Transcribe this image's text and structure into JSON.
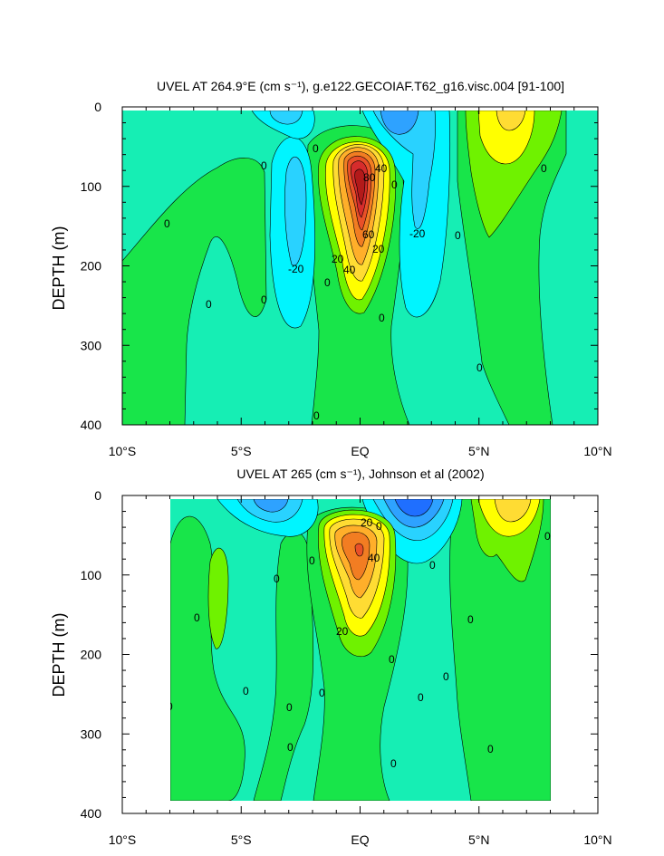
{
  "chart_data": [
    {
      "type": "heatmap",
      "subtype": "filled-contour",
      "title": "UVEL AT 264.9°E (cm s⁻¹), g.e122.GECOIAF.T62_g16.visc.004 [91-100]",
      "ylabel": "DEPTH (m)",
      "xlabel": "",
      "x_ticks": [
        "10°S",
        "5°S",
        "EQ",
        "5°N",
        "10°N"
      ],
      "x_values": [
        -10,
        -5,
        0,
        5,
        10
      ],
      "y_ticks": [
        "0",
        "100",
        "200",
        "300",
        "400"
      ],
      "y_values": [
        0,
        100,
        200,
        300,
        400
      ],
      "xlim": [
        -10,
        10
      ],
      "ylim": [
        400,
        0
      ],
      "contour_interval": 10,
      "contour_labels": [
        "0",
        "0",
        "0",
        "0",
        "0",
        "0",
        "0",
        "0",
        "0",
        "0",
        "0",
        "0",
        "-20",
        "-20",
        "20",
        "20",
        "40",
        "40",
        "60",
        "80"
      ],
      "features": [
        {
          "name": "equatorial undercurrent core",
          "lat": 0,
          "depth": 110,
          "u_max": 90
        },
        {
          "name": "northern surface maximum",
          "lat": 5.8,
          "depth": 20,
          "u_max": 35
        },
        {
          "name": "westward flow",
          "lat": -2.7,
          "depth": 140,
          "u_min": -30
        },
        {
          "name": "westward flow",
          "lat": 1.3,
          "depth": 20,
          "u_min": -30
        }
      ]
    },
    {
      "type": "heatmap",
      "subtype": "filled-contour",
      "title": "UVEL AT 265 (cm s⁻¹), Johnson et al (2002)",
      "ylabel": "DEPTH (m)",
      "xlabel": "",
      "x_ticks": [
        "10°S",
        "5°S",
        "EQ",
        "5°N",
        "10°N"
      ],
      "x_values": [
        -10,
        -5,
        0,
        5,
        10
      ],
      "y_ticks": [
        "0",
        "100",
        "200",
        "300",
        "400"
      ],
      "y_values": [
        0,
        100,
        200,
        300,
        400
      ],
      "xlim": [
        -10,
        10
      ],
      "ylim": [
        400,
        0
      ],
      "data_extent_lat": [
        -8,
        8
      ],
      "contour_interval": 10,
      "contour_labels": [
        "0",
        "0",
        "0",
        "0",
        "0",
        "0",
        "0",
        "0",
        "0",
        "0",
        "0",
        "0",
        "0",
        "0",
        "0",
        "0",
        "0",
        "20",
        "20",
        "40"
      ],
      "features": [
        {
          "name": "equatorial undercurrent core",
          "lat": 0,
          "depth": 70,
          "u_max": 60
        },
        {
          "name": "northern surface maximum",
          "lat": 5.8,
          "depth": 15,
          "u_max": 40
        },
        {
          "name": "westward flow",
          "lat": -4.5,
          "depth": 10,
          "u_min": -30
        },
        {
          "name": "westward flow",
          "lat": 1.8,
          "depth": 15,
          "u_min": -40
        }
      ]
    }
  ],
  "colors": {
    "u_neg40": "#1f6fff",
    "u_neg30": "#2ea2ff",
    "u_neg20": "#29d2ff",
    "u_neg10": "#00f5ff",
    "u_0": "#16eeb4",
    "u_10": "#18e54a",
    "u_20": "#6ff200",
    "u_30": "#ffff00",
    "u_40": "#ffdc33",
    "u_50": "#ffaf2a",
    "u_60": "#f27d22",
    "u_70": "#e95028",
    "u_80": "#d62c2c",
    "u_90": "#b31a1a"
  }
}
